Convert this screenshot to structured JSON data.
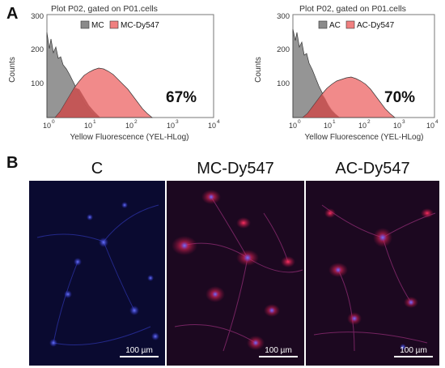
{
  "panel_a": {
    "letter": "A",
    "plots": [
      {
        "title": "Plot P02, gated on P01.cells",
        "legend": [
          "MC",
          "MC-Dy547"
        ],
        "y_ticks": [
          "300",
          "200",
          "100"
        ],
        "y_label": "Counts",
        "x_ticks": [
          "10",
          "10",
          "10",
          "10",
          "10"
        ],
        "x_exps": [
          "0",
          "1",
          "2",
          "3",
          "4"
        ],
        "x_label": "Yellow Fluorescence (YEL-HLog)",
        "percent": "67%"
      },
      {
        "title": "Plot P02, gated on P01.cells",
        "legend": [
          "AC",
          "AC-Dy547"
        ],
        "y_ticks": [
          "300",
          "200",
          "100"
        ],
        "y_label": "Counts",
        "x_ticks": [
          "10",
          "10",
          "10",
          "10",
          "10"
        ],
        "x_exps": [
          "0",
          "1",
          "2",
          "3",
          "4"
        ],
        "x_label": "Yellow Fluorescence (YEL-HLog)",
        "percent": "70%"
      }
    ]
  },
  "panel_b": {
    "letter": "B",
    "images": [
      {
        "title": "C",
        "scale": "100 µm"
      },
      {
        "title": "MC-Dy547",
        "scale": "100 µm"
      },
      {
        "title": "AC-Dy547",
        "scale": "100 µm"
      }
    ]
  },
  "colors": {
    "control_fill": "#8a8a8a",
    "dye_fill": "#f08080",
    "nucleus": "#3a46ff",
    "dye_signal": "#ff2a50"
  }
}
